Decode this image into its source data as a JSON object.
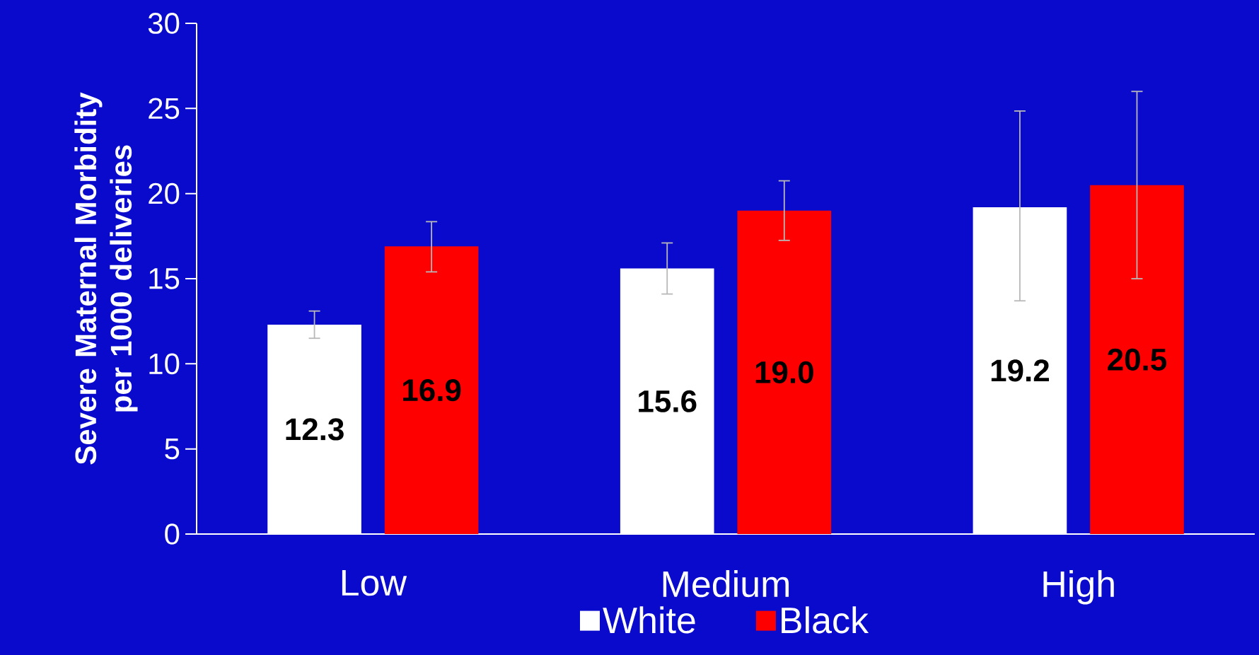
{
  "chart_data": {
    "type": "bar",
    "ylabel": "Severe Maternal Morbidity per 1000 deliveries",
    "categories": [
      "Low",
      "Medium",
      "High"
    ],
    "series": [
      {
        "name": "White",
        "color": "#ffffff",
        "values": [
          12.3,
          15.6,
          19.2
        ],
        "value_labels": [
          "12.3",
          "15.6",
          "19.2"
        ],
        "errors": [
          [
            11.5,
            13.1
          ],
          [
            14.1,
            17.1
          ],
          [
            13.7,
            24.85
          ]
        ]
      },
      {
        "name": "Black",
        "color": "#ff0000",
        "values": [
          16.9,
          19.0,
          20.5
        ],
        "value_labels": [
          "16.9",
          "19.0",
          "20.5"
        ],
        "errors": [
          [
            15.4,
            18.35
          ],
          [
            17.25,
            20.75
          ],
          [
            15.0,
            26.0
          ]
        ]
      }
    ],
    "ylim": [
      0,
      30
    ],
    "yticks": [
      0,
      5,
      10,
      15,
      20,
      25,
      30
    ],
    "legend": "bottom"
  }
}
